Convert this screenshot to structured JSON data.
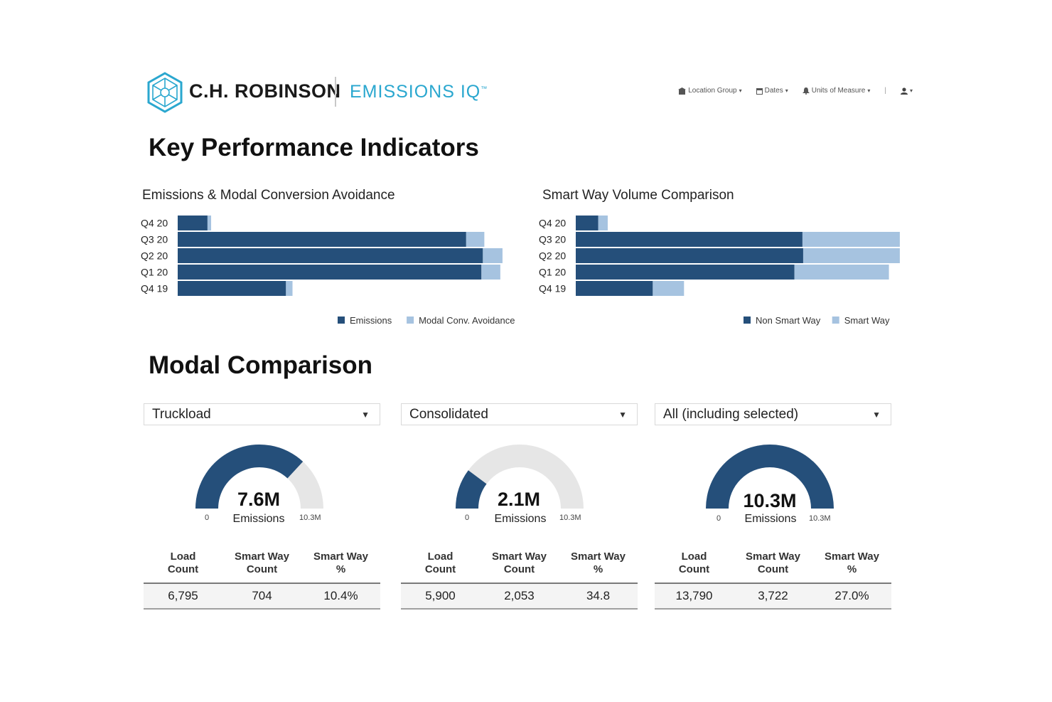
{
  "header": {
    "brand": "C.H. ROBINSON",
    "product": "EMISSIONS IQ",
    "trademark": "™",
    "nav": [
      {
        "label": "Location Group",
        "icon": "building-icon"
      },
      {
        "label": "Dates",
        "icon": "calendar-icon"
      },
      {
        "label": "Units of Measure",
        "icon": "bell-icon"
      }
    ],
    "nav_separator": "|",
    "user_icon": "user-icon"
  },
  "kpi": {
    "title": "Key Performance Indicators"
  },
  "modal": {
    "title": "Modal Comparison"
  },
  "chart_data": [
    {
      "type": "bar",
      "orientation": "horizontal",
      "stacked": true,
      "title": "Emissions & Modal Conversion Avoidance",
      "categories": [
        "Q4 20",
        "Q3 20",
        "Q2 20",
        "Q1 20",
        "Q4 19"
      ],
      "series": [
        {
          "name": "Emissions",
          "color": "#254f7a",
          "values": [
            41,
            397,
            420,
            418,
            149
          ]
        },
        {
          "name": "Modal Conv. Avoidance",
          "color": "#a6c3e0",
          "values": [
            5,
            25,
            27,
            26,
            9
          ]
        }
      ],
      "xlim": [
        0,
        450
      ],
      "legend": "bottom-right"
    },
    {
      "type": "bar",
      "orientation": "horizontal",
      "stacked": true,
      "title": "Smart Way Volume Comparison",
      "categories": [
        "Q4 20",
        "Q3 20",
        "Q2 20",
        "Q1 20",
        "Q4 19"
      ],
      "series": [
        {
          "name": "Non Smart Way",
          "color": "#254f7a",
          "values": [
            31,
            312,
            313,
            301,
            106
          ]
        },
        {
          "name": "Smart Way",
          "color": "#a6c3e0",
          "values": [
            13,
            134,
            133,
            130,
            43
          ]
        }
      ],
      "xlim": [
        0,
        450
      ],
      "legend": "bottom-right"
    }
  ],
  "comparisons": [
    {
      "mode": "Truckload",
      "gauge": {
        "value": 7.6,
        "max": 10.3,
        "display": "7.6M",
        "label": "Emissions",
        "min_label": "0",
        "max_label": "10.3M"
      },
      "headers": [
        [
          "Load",
          "Count"
        ],
        [
          "Smart Way",
          "Count"
        ],
        [
          "Smart Way",
          "%"
        ]
      ],
      "row": [
        "6,795",
        "704",
        "10.4%"
      ]
    },
    {
      "mode": "Consolidated",
      "gauge": {
        "value": 2.1,
        "max": 10.3,
        "display": "2.1M",
        "label": "Emissions",
        "min_label": "0",
        "max_label": "10.3M"
      },
      "headers": [
        [
          "Load",
          "Count"
        ],
        [
          "Smart Way",
          "Count"
        ],
        [
          "Smart Way",
          "%"
        ]
      ],
      "row": [
        "5,900",
        "2,053",
        "34.8"
      ]
    },
    {
      "mode": "All (including selected)",
      "gauge": {
        "value": 10.3,
        "max": 10.3,
        "display": "10.3M",
        "label": "Emissions",
        "min_label": "0",
        "max_label": "10.3M"
      },
      "headers": [
        [
          "Load",
          "Count"
        ],
        [
          "Smart Way",
          "Count"
        ],
        [
          "Smart Way",
          "%"
        ]
      ],
      "row": [
        "13,790",
        "3,722",
        "27.0%"
      ]
    }
  ],
  "colors": {
    "dark": "#254f7a",
    "light": "#a6c3e0",
    "track": "#e6e6e6",
    "accent": "#2aa7cf"
  }
}
